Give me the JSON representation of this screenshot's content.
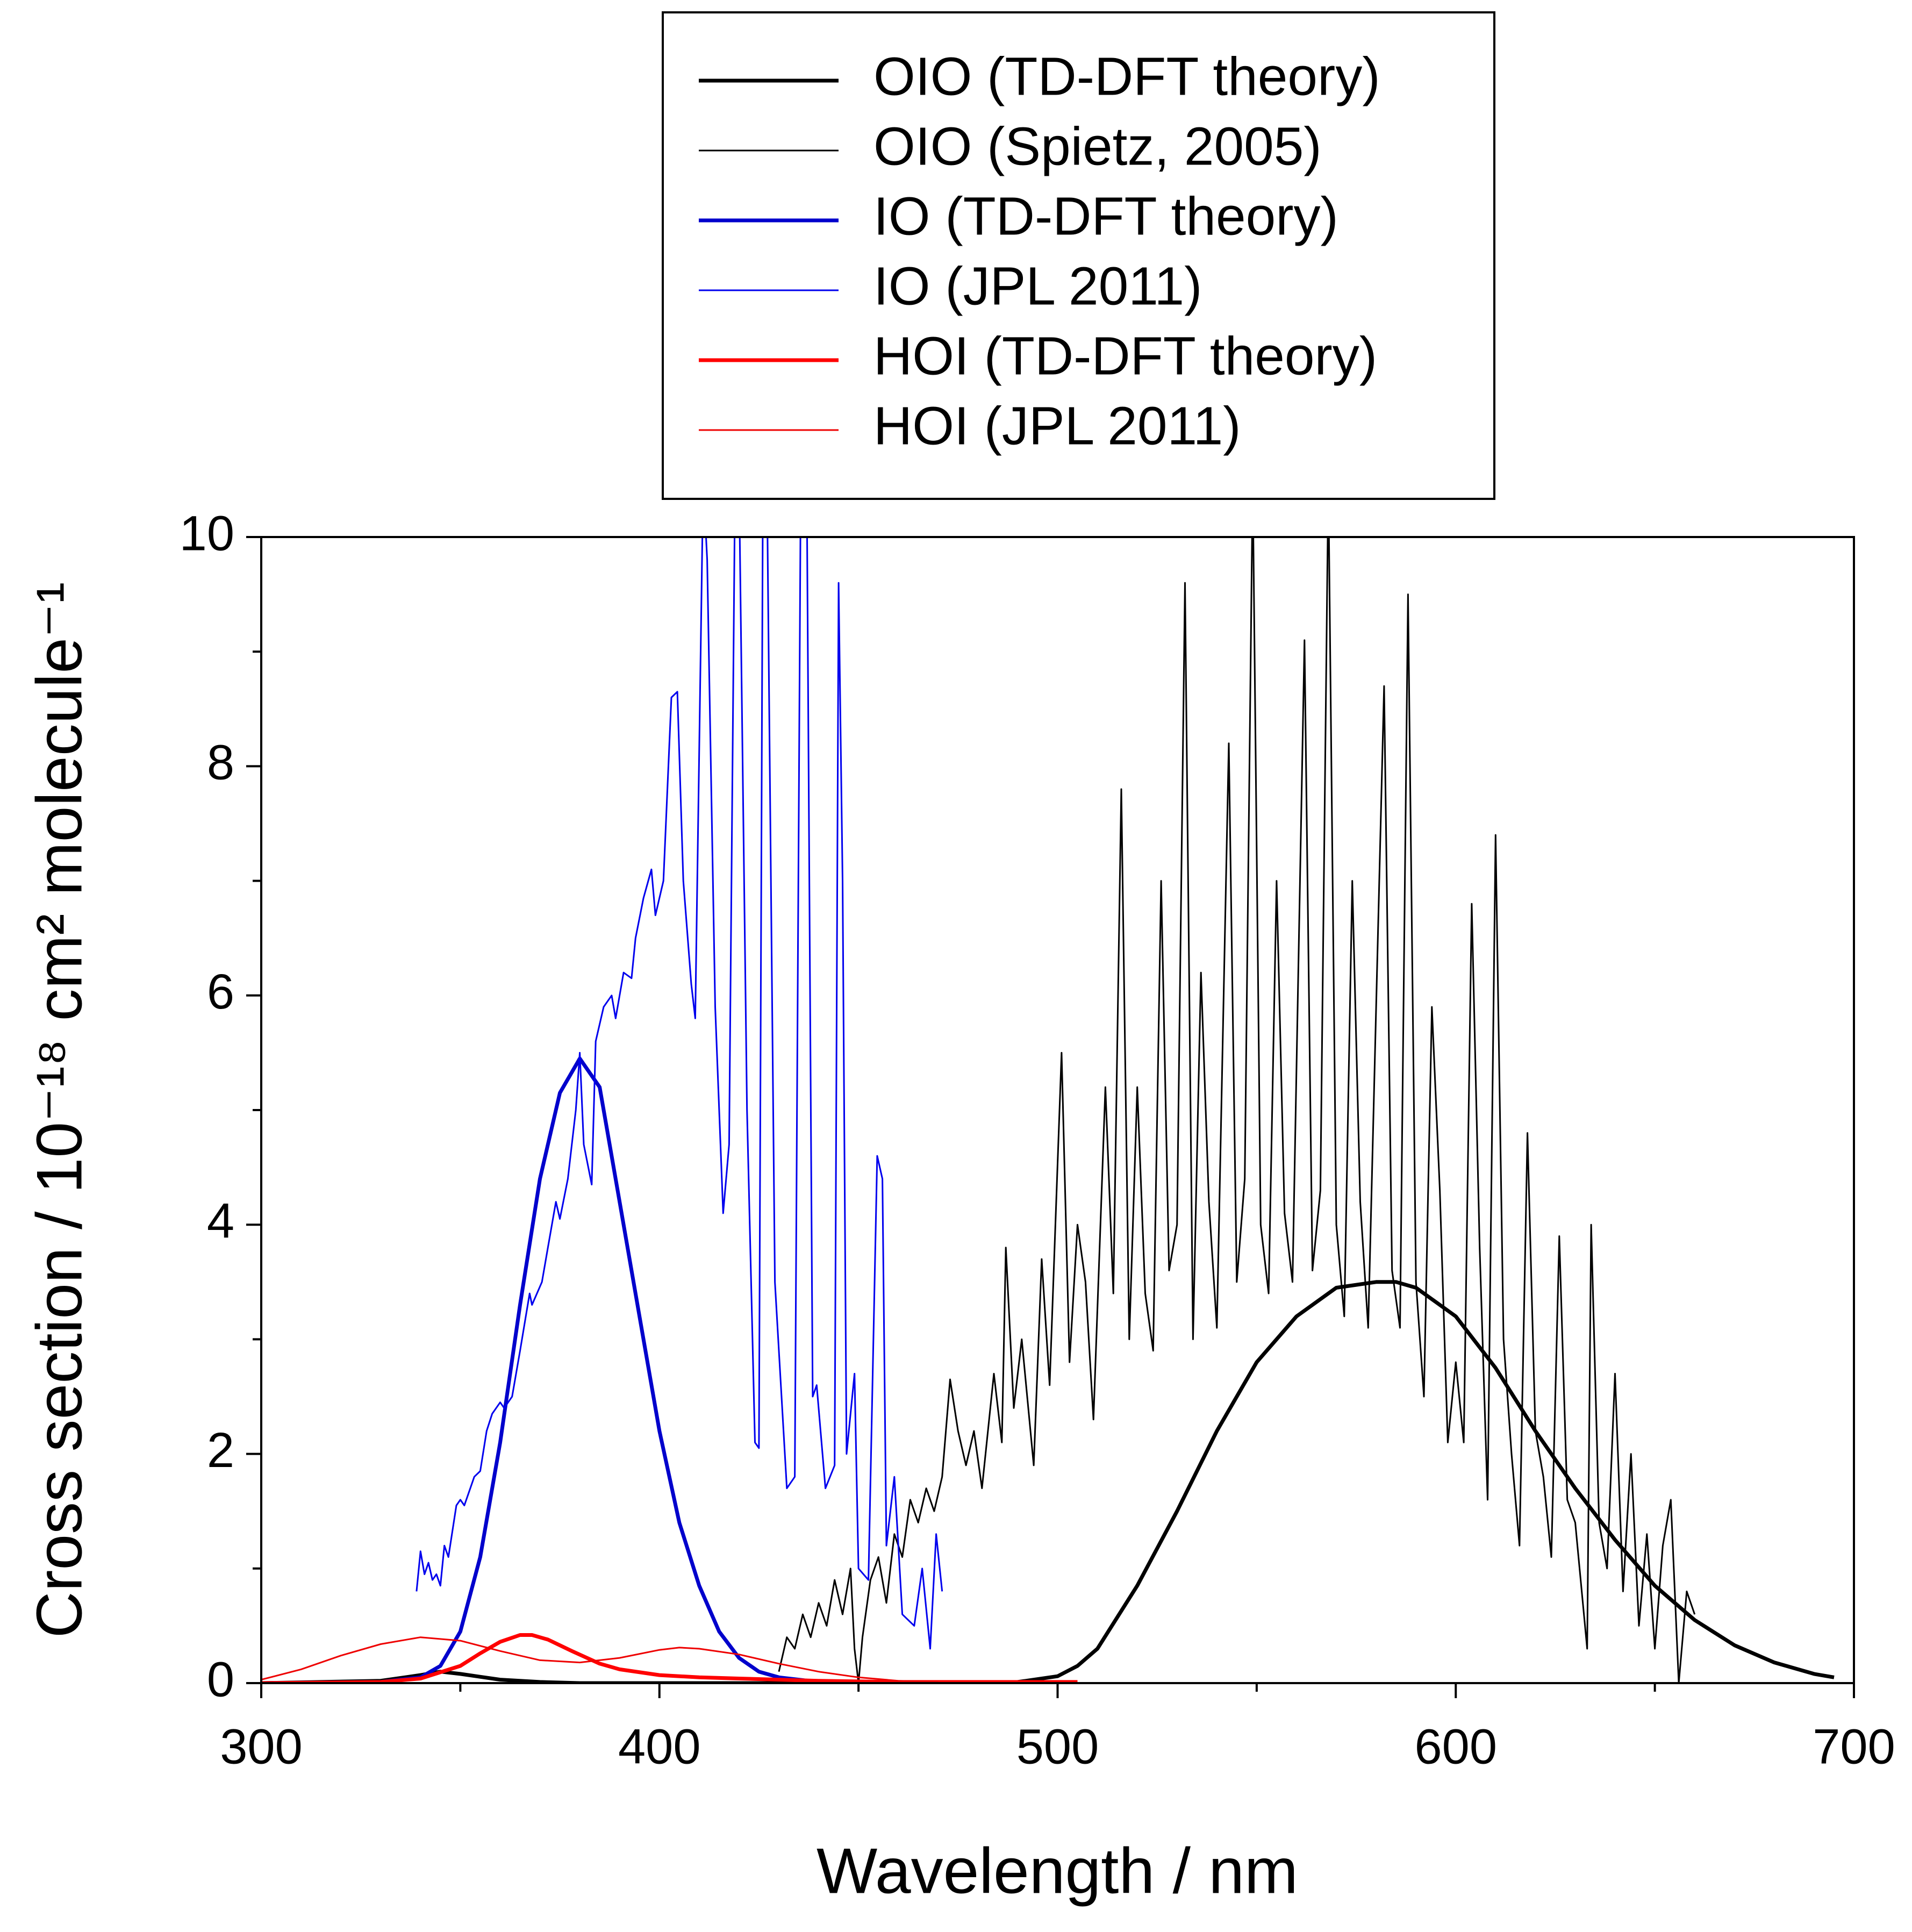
{
  "chart_data": {
    "type": "line",
    "xlabel": "Wavelength / nm",
    "ylabel": "Cross section / 10⁻¹⁸ cm² molecule⁻¹",
    "xlim": [
      300,
      700
    ],
    "ylim": [
      0,
      10
    ],
    "xticks": [
      300,
      400,
      500,
      600,
      700
    ],
    "yticks": [
      0,
      2,
      4,
      6,
      8,
      10
    ],
    "xminorticks": [
      350,
      450,
      550,
      650
    ],
    "yminorticks": [
      1,
      3,
      5,
      7,
      9
    ],
    "legend": "top",
    "series": [
      {
        "name": "OIO (TD-DFT theory)",
        "color": "#000000",
        "x": [
          300,
          330,
          340,
          345,
          350,
          360,
          370,
          380,
          400,
          480,
          490,
          500,
          505,
          510,
          520,
          530,
          540,
          550,
          560,
          570,
          580,
          585,
          590,
          600,
          610,
          620,
          630,
          640,
          650,
          660,
          670,
          680,
          690,
          695
        ],
        "values": [
          0,
          0.02,
          0.07,
          0.1,
          0.08,
          0.03,
          0.01,
          0,
          0,
          0,
          0.01,
          0.06,
          0.15,
          0.3,
          0.85,
          1.5,
          2.2,
          2.8,
          3.2,
          3.45,
          3.5,
          3.5,
          3.45,
          3.2,
          2.75,
          2.2,
          1.7,
          1.25,
          0.85,
          0.55,
          0.33,
          0.18,
          0.08,
          0.05
        ]
      },
      {
        "name": "OIO (Spietz, 2005)",
        "color": "#000000",
        "x": [
          430,
          432,
          434,
          436,
          438,
          440,
          442,
          444,
          446,
          448,
          449,
          450,
          451,
          453,
          455,
          457,
          459,
          461,
          463,
          465,
          467,
          469,
          471,
          473,
          475,
          477,
          479,
          481,
          484,
          486,
          487,
          489,
          491,
          494,
          496,
          498,
          501,
          503,
          505,
          507,
          509,
          512,
          514,
          516,
          518,
          520,
          522,
          524,
          526,
          528,
          530,
          532,
          534,
          536,
          538,
          540,
          543,
          545,
          547,
          549,
          551,
          553,
          555,
          557,
          559,
          562,
          564,
          566,
          568,
          570,
          572,
          574,
          576,
          578,
          582,
          584,
          586,
          588,
          590,
          592,
          594,
          596,
          598,
          600,
          602,
          604,
          606,
          608,
          610,
          612,
          614,
          616,
          618,
          620,
          622,
          624,
          626,
          628,
          630,
          633,
          634,
          636,
          638,
          640,
          642,
          644,
          646,
          648,
          650,
          652,
          654,
          656,
          658,
          660
        ],
        "values": [
          0.1,
          0.4,
          0.3,
          0.6,
          0.4,
          0.7,
          0.5,
          0.9,
          0.6,
          1.0,
          0.3,
          0.0,
          0.4,
          0.9,
          1.1,
          0.7,
          1.3,
          1.1,
          1.6,
          1.4,
          1.7,
          1.5,
          1.8,
          2.65,
          2.2,
          1.9,
          2.2,
          1.7,
          2.7,
          2.1,
          3.8,
          2.4,
          3.0,
          1.9,
          3.7,
          2.6,
          5.5,
          2.8,
          4.0,
          3.5,
          2.3,
          5.2,
          3.4,
          7.8,
          3.0,
          5.2,
          3.4,
          2.9,
          7.0,
          3.6,
          4.0,
          9.6,
          3.0,
          6.2,
          4.2,
          3.1,
          8.2,
          3.5,
          4.4,
          10.5,
          4.0,
          3.4,
          7.0,
          4.1,
          3.5,
          9.1,
          3.6,
          4.3,
          10.5,
          4.0,
          3.2,
          7.0,
          4.2,
          3.1,
          8.7,
          3.6,
          3.1,
          9.5,
          3.5,
          2.5,
          5.9,
          4.3,
          2.1,
          2.8,
          2.1,
          6.8,
          3.8,
          1.6,
          7.4,
          3.0,
          2.0,
          1.2,
          4.8,
          2.2,
          1.8,
          1.1,
          3.9,
          1.6,
          1.4,
          0.3,
          4.0,
          1.4,
          1.0,
          2.7,
          0.8,
          2.0,
          0.5,
          1.3,
          0.3,
          1.2,
          1.6,
          0.0,
          0.8,
          0.6
        ]
      },
      {
        "name": "IO (TD-DFT theory)",
        "color": "#0000cc",
        "x": [
          300,
          330,
          340,
          345,
          350,
          355,
          360,
          365,
          370,
          375,
          380,
          385,
          390,
          395,
          400,
          405,
          410,
          415,
          420,
          425,
          430,
          440,
          450
        ],
        "values": [
          0,
          0.01,
          0.05,
          0.15,
          0.45,
          1.1,
          2.1,
          3.3,
          4.4,
          5.15,
          5.45,
          5.2,
          4.2,
          3.2,
          2.2,
          1.4,
          0.85,
          0.45,
          0.22,
          0.1,
          0.05,
          0.01,
          0
        ]
      },
      {
        "name": "IO (JPL 2011)",
        "color": "#0000ee",
        "x": [
          339,
          340,
          341,
          342,
          343,
          344,
          345,
          346,
          347,
          349,
          350,
          351,
          352,
          353.5,
          355,
          356.6,
          358,
          360,
          361,
          363,
          365,
          367.4,
          368,
          370.5,
          372,
          374,
          375,
          377,
          379,
          380,
          381,
          383,
          384,
          386,
          388,
          389,
          391,
          393,
          394,
          396,
          398,
          399,
          401,
          403,
          404.5,
          406,
          408,
          409,
          411,
          412,
          414,
          416,
          417.5,
          419,
          420,
          422,
          424,
          425,
          426,
          427,
          429,
          432,
          434,
          435.5,
          437,
          438.5,
          439.5,
          441.7,
          444,
          445,
          446,
          447,
          449,
          450,
          452.5,
          454.7,
          456,
          457,
          459,
          461,
          464,
          466,
          468,
          469.5,
          471
        ],
        "values": [
          0.8,
          1.15,
          0.95,
          1.05,
          0.9,
          0.95,
          0.85,
          1.2,
          1.1,
          1.55,
          1.6,
          1.55,
          1.65,
          1.8,
          1.85,
          2.2,
          2.35,
          2.45,
          2.4,
          2.5,
          2.9,
          3.4,
          3.3,
          3.5,
          3.8,
          4.2,
          4.05,
          4.4,
          5.0,
          5.5,
          4.7,
          4.35,
          5.6,
          5.9,
          6.0,
          5.8,
          6.2,
          6.15,
          6.5,
          6.85,
          7.1,
          6.7,
          7.0,
          8.6,
          8.65,
          7.0,
          6.1,
          5.8,
          10.5,
          9.8,
          5.9,
          4.1,
          4.7,
          10.5,
          10.5,
          5.0,
          2.1,
          2.05,
          10.5,
          10.5,
          3.5,
          1.7,
          1.8,
          10.5,
          10.5,
          2.5,
          2.6,
          1.7,
          1.9,
          9.6,
          7.0,
          2.0,
          2.7,
          1.0,
          0.9,
          4.6,
          4.4,
          1.2,
          1.8,
          0.6,
          0.5,
          1.0,
          0.3,
          1.3,
          0.8
        ]
      },
      {
        "name": "HOI (TD-DFT theory)",
        "color": "#ff0000",
        "x": [
          300,
          330,
          340,
          350,
          355,
          360,
          365,
          368,
          372,
          378,
          385,
          390,
          400,
          410,
          420,
          430,
          440,
          460,
          480,
          505
        ],
        "values": [
          0,
          0.01,
          0.04,
          0.15,
          0.26,
          0.36,
          0.42,
          0.42,
          0.38,
          0.28,
          0.17,
          0.12,
          0.07,
          0.05,
          0.04,
          0.03,
          0.02,
          0.01,
          0.01,
          0.01
        ]
      },
      {
        "name": "HOI (JPL 2011)",
        "color": "#ee0000",
        "x": [
          300,
          310,
          320,
          330,
          340,
          350,
          360,
          370,
          380,
          390,
          400,
          405,
          410,
          420,
          430,
          440,
          450,
          460,
          470
        ],
        "values": [
          0.03,
          0.12,
          0.24,
          0.34,
          0.4,
          0.37,
          0.28,
          0.2,
          0.18,
          0.22,
          0.29,
          0.31,
          0.3,
          0.25,
          0.17,
          0.1,
          0.05,
          0.02,
          0.01
        ]
      }
    ]
  }
}
